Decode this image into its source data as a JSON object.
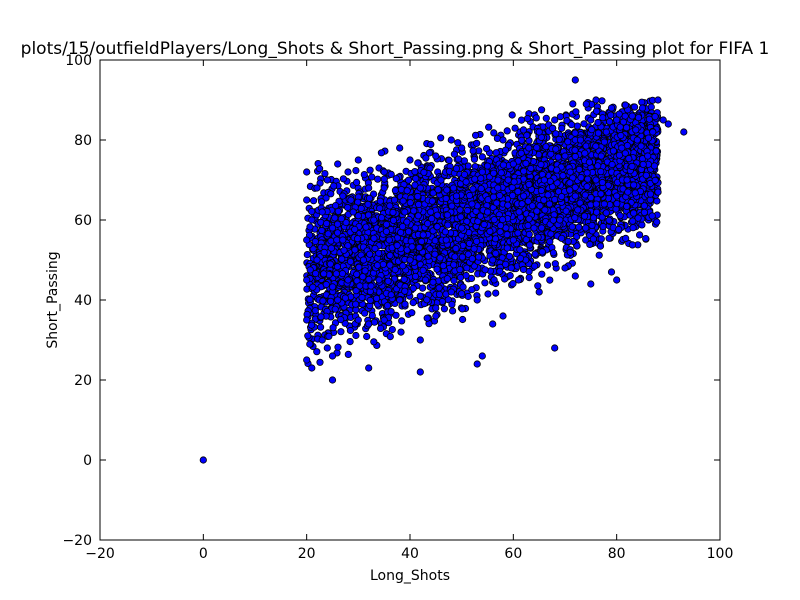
{
  "chart_data": {
    "type": "scatter",
    "title": "plots/15/outfieldPlayers/Long_Shots & Short_Passing.png & Short_Passing plot for FIFA 1",
    "xlabel": "Long_Shots",
    "ylabel": "Short_Passing",
    "xlim": [
      -20,
      100
    ],
    "ylim": [
      -20,
      100
    ],
    "xticks": [
      -20,
      0,
      20,
      40,
      60,
      80,
      100
    ],
    "yticks": [
      -20,
      0,
      20,
      40,
      60,
      80,
      100
    ],
    "grid": false,
    "legend": "none",
    "marker_color": "#0000ff",
    "marker_edge_color": "#000000",
    "series": [
      {
        "x": [
          0,
          20,
          20,
          20,
          20,
          20,
          20,
          21,
          21,
          22,
          22,
          23,
          23,
          24,
          24,
          25,
          25,
          26,
          26,
          27,
          27,
          28,
          28,
          29,
          30,
          30,
          31,
          32,
          32,
          33,
          34,
          35,
          35,
          36,
          37,
          38,
          38,
          39,
          40,
          40,
          41,
          42,
          42,
          43,
          44,
          45,
          45,
          46,
          47,
          48,
          48,
          49,
          50,
          50,
          51,
          52,
          53,
          54,
          54,
          55,
          56,
          57,
          58,
          58,
          59,
          60,
          60,
          61,
          62,
          63,
          64,
          65,
          65,
          66,
          67,
          68,
          69,
          70,
          70,
          71,
          72,
          72,
          73,
          74,
          75,
          76,
          76,
          77,
          78,
          79,
          80,
          80,
          81,
          82,
          83,
          84,
          85,
          86,
          87,
          88,
          88,
          89,
          90,
          93,
          25,
          32,
          42,
          45,
          53,
          56,
          68,
          72,
          75,
          79,
          80,
          88
        ],
        "y": [
          0,
          25,
          35,
          45,
          55,
          65,
          72,
          23,
          60,
          50,
          68,
          30,
          62,
          28,
          70,
          20,
          58,
          40,
          74,
          55,
          66,
          45,
          72,
          62,
          35,
          75,
          50,
          23,
          68,
          60,
          45,
          72,
          35,
          55,
          65,
          40,
          78,
          62,
          50,
          75,
          58,
          22,
          68,
          45,
          62,
          38,
          76,
          70,
          55,
          42,
          80,
          66,
          58,
          78,
          48,
          64,
          40,
          26,
          72,
          62,
          50,
          68,
          36,
          80,
          70,
          55,
          74,
          45,
          66,
          78,
          58,
          42,
          82,
          70,
          64,
          85,
          60,
          48,
          76,
          72,
          95,
          66,
          80,
          58,
          85,
          70,
          90,
          76,
          82,
          88,
          66,
          85,
          78,
          70,
          86,
          80,
          88,
          76,
          82,
          67,
          90,
          85,
          84,
          82,
          26,
          34,
          30,
          36,
          24,
          34,
          28,
          46,
          44,
          47,
          45,
          67
        ]
      }
    ]
  }
}
